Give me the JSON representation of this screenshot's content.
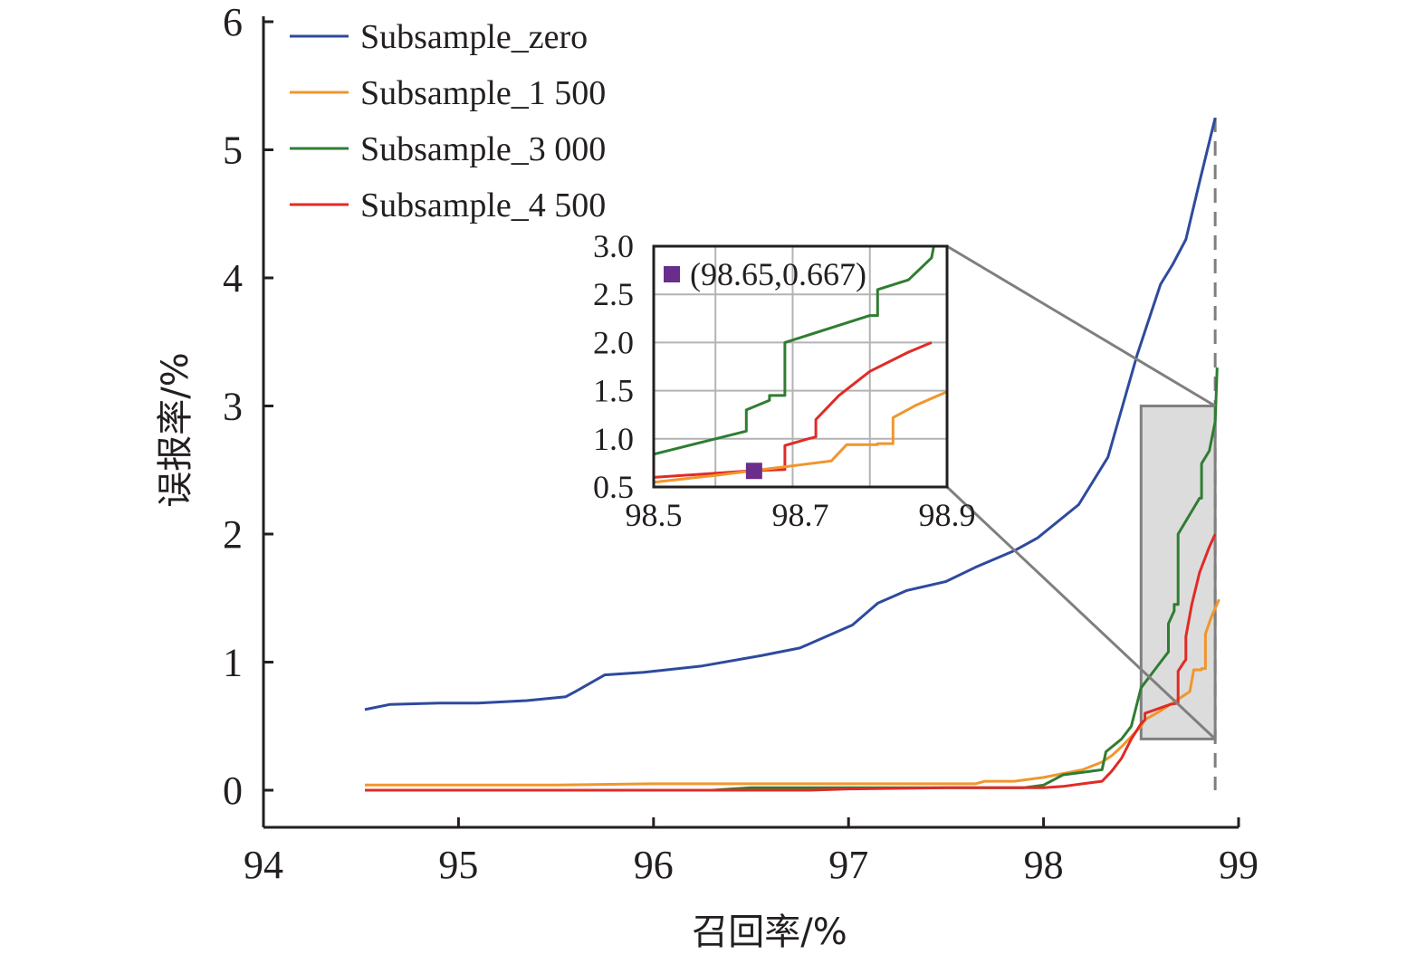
{
  "chart_data": {
    "type": "line",
    "xlabel": "召回率/%",
    "ylabel": "误报率/%",
    "xlim": [
      94,
      99
    ],
    "ylim": [
      0,
      6
    ],
    "xticks": [
      94,
      95,
      96,
      97,
      98,
      99
    ],
    "yticks": [
      0,
      1,
      2,
      3,
      4,
      5,
      6
    ],
    "grid": false,
    "legend_position": "top-left",
    "reference_line_x": 98.88,
    "zoom_region": {
      "x": [
        98.5,
        98.88
      ],
      "y": [
        0.4,
        3.0
      ]
    },
    "series": [
      {
        "name": "Subsample_zero",
        "color": "#2e4a9e",
        "x": [
          94.52,
          94.65,
          94.9,
          95.1,
          95.35,
          95.55,
          95.6,
          95.75,
          95.95,
          96.25,
          96.55,
          96.75,
          97.02,
          97.15,
          97.3,
          97.5,
          97.65,
          97.85,
          97.97,
          98.18,
          98.33,
          98.48,
          98.6,
          98.66,
          98.73,
          98.8,
          98.88
        ],
        "y": [
          0.63,
          0.67,
          0.68,
          0.68,
          0.7,
          0.73,
          0.77,
          0.9,
          0.92,
          0.97,
          1.05,
          1.11,
          1.29,
          1.46,
          1.56,
          1.63,
          1.74,
          1.87,
          1.97,
          2.23,
          2.6,
          3.4,
          3.95,
          4.1,
          4.3,
          4.75,
          5.25
        ]
      },
      {
        "name": "Subsample_1 500",
        "color": "#f0962e",
        "x": [
          94.52,
          95.5,
          96.0,
          96.5,
          97.0,
          97.5,
          97.65,
          97.7,
          97.85,
          98.0,
          98.2,
          98.3,
          98.35,
          98.4,
          98.45,
          98.5,
          98.52,
          98.6,
          98.65,
          98.7,
          98.75,
          98.77,
          98.81,
          98.81,
          98.83,
          98.83,
          98.86,
          98.9
        ],
        "y": [
          0.04,
          0.04,
          0.05,
          0.05,
          0.05,
          0.05,
          0.05,
          0.07,
          0.07,
          0.1,
          0.16,
          0.22,
          0.27,
          0.34,
          0.42,
          0.5,
          0.55,
          0.62,
          0.67,
          0.72,
          0.77,
          0.94,
          0.94,
          0.95,
          0.95,
          1.22,
          1.35,
          1.49
        ]
      },
      {
        "name": "Subsample_3 000",
        "color": "#2f7d32",
        "x": [
          94.52,
          96.3,
          96.5,
          97.2,
          97.9,
          98.0,
          98.05,
          98.1,
          98.2,
          98.3,
          98.32,
          98.4,
          98.45,
          98.5,
          98.55,
          98.6,
          98.64,
          98.64,
          98.67,
          98.67,
          98.69,
          98.69,
          98.8,
          98.81,
          98.81,
          98.85,
          98.88,
          98.89
        ],
        "y": [
          0.0,
          0.0,
          0.02,
          0.02,
          0.02,
          0.04,
          0.08,
          0.12,
          0.14,
          0.16,
          0.3,
          0.4,
          0.5,
          0.8,
          0.9,
          1.0,
          1.08,
          1.3,
          1.4,
          1.45,
          1.45,
          2.0,
          2.28,
          2.28,
          2.55,
          2.65,
          2.88,
          3.3
        ]
      },
      {
        "name": "Subsample_4 500",
        "color": "#e02b27",
        "x": [
          94.52,
          96.0,
          96.8,
          97.0,
          97.5,
          97.9,
          98.0,
          98.1,
          98.2,
          98.3,
          98.35,
          98.4,
          98.45,
          98.5,
          98.52,
          98.52,
          98.65,
          98.69,
          98.69,
          98.72,
          98.73,
          98.73,
          98.76,
          98.8,
          98.85,
          98.88
        ],
        "y": [
          0.0,
          0.0,
          0.0,
          0.01,
          0.02,
          0.02,
          0.02,
          0.03,
          0.05,
          0.07,
          0.15,
          0.25,
          0.4,
          0.52,
          0.55,
          0.6,
          0.67,
          0.68,
          0.93,
          1.0,
          1.02,
          1.2,
          1.45,
          1.7,
          1.9,
          2.0
        ]
      }
    ],
    "inset": {
      "xlim": [
        98.52,
        98.9
      ],
      "ylim": [
        0.5,
        3.0
      ],
      "xticks": [
        "98.5",
        "98.7",
        "98.9"
      ],
      "yticks": [
        "0.5",
        "1.0",
        "1.5",
        "2.0",
        "2.5",
        "3.0"
      ],
      "grid": true,
      "annotation": {
        "x": 98.65,
        "y": 0.667,
        "label": "(98.65,0.667)",
        "color": "#6b2d8c"
      }
    }
  }
}
